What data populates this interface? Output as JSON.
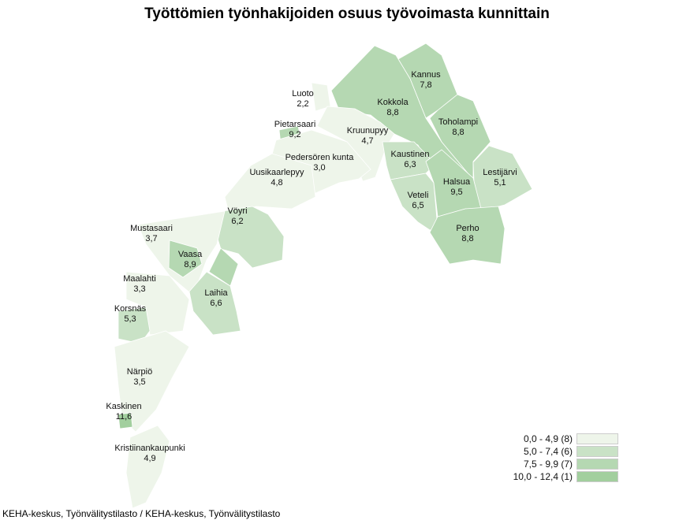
{
  "title": "Työttömien työnhakijoiden osuus työvoimasta kunnittain",
  "source": "KEHA-keskus, Työnvälitystilasto / KEHA-keskus, Työnvälitystilasto",
  "legend": [
    {
      "label": "0,0 - 4,9 (8)",
      "color": "#eef5ea"
    },
    {
      "label": "5,0 - 7,4 (6)",
      "color": "#c9e2c6"
    },
    {
      "label": "7,5 - 9,9 (7)",
      "color": "#b5d8b2"
    },
    {
      "label": "10,0 - 12,4 (1)",
      "color": "#a2cf9e"
    }
  ],
  "municipalities": [
    {
      "name": "Kannus",
      "value": "7,8",
      "class": 2
    },
    {
      "name": "Kokkola",
      "value": "8,8",
      "class": 2
    },
    {
      "name": "Toholampi",
      "value": "8,8",
      "class": 2
    },
    {
      "name": "Luoto",
      "value": "2,2",
      "class": 0
    },
    {
      "name": "Pietarsaari",
      "value": "9,2",
      "class": 2
    },
    {
      "name": "Kruunupyy",
      "value": "4,7",
      "class": 0
    },
    {
      "name": "Pedersören kunta",
      "value": "3,0",
      "class": 0
    },
    {
      "name": "Kaustinen",
      "value": "6,3",
      "class": 1
    },
    {
      "name": "Lestijärvi",
      "value": "5,1",
      "class": 1
    },
    {
      "name": "Uusikaarlepyy",
      "value": "4,8",
      "class": 0
    },
    {
      "name": "Veteli",
      "value": "6,5",
      "class": 1
    },
    {
      "name": "Halsua",
      "value": "9,5",
      "class": 2
    },
    {
      "name": "Vöyri",
      "value": "6,2",
      "class": 1
    },
    {
      "name": "Perho",
      "value": "8,8",
      "class": 2
    },
    {
      "name": "Mustasaari",
      "value": "3,7",
      "class": 0
    },
    {
      "name": "Vaasa",
      "value": "8,9",
      "class": 2
    },
    {
      "name": "Maalahti",
      "value": "3,3",
      "class": 0
    },
    {
      "name": "Laihia",
      "value": "6,6",
      "class": 1
    },
    {
      "name": "Korsnäs",
      "value": "5,3",
      "class": 1
    },
    {
      "name": "Närpiö",
      "value": "3,5",
      "class": 0
    },
    {
      "name": "Kaskinen",
      "value": "11,6",
      "class": 3
    },
    {
      "name": "Kristiinankaupunki",
      "value": "4,9",
      "class": 0
    }
  ]
}
